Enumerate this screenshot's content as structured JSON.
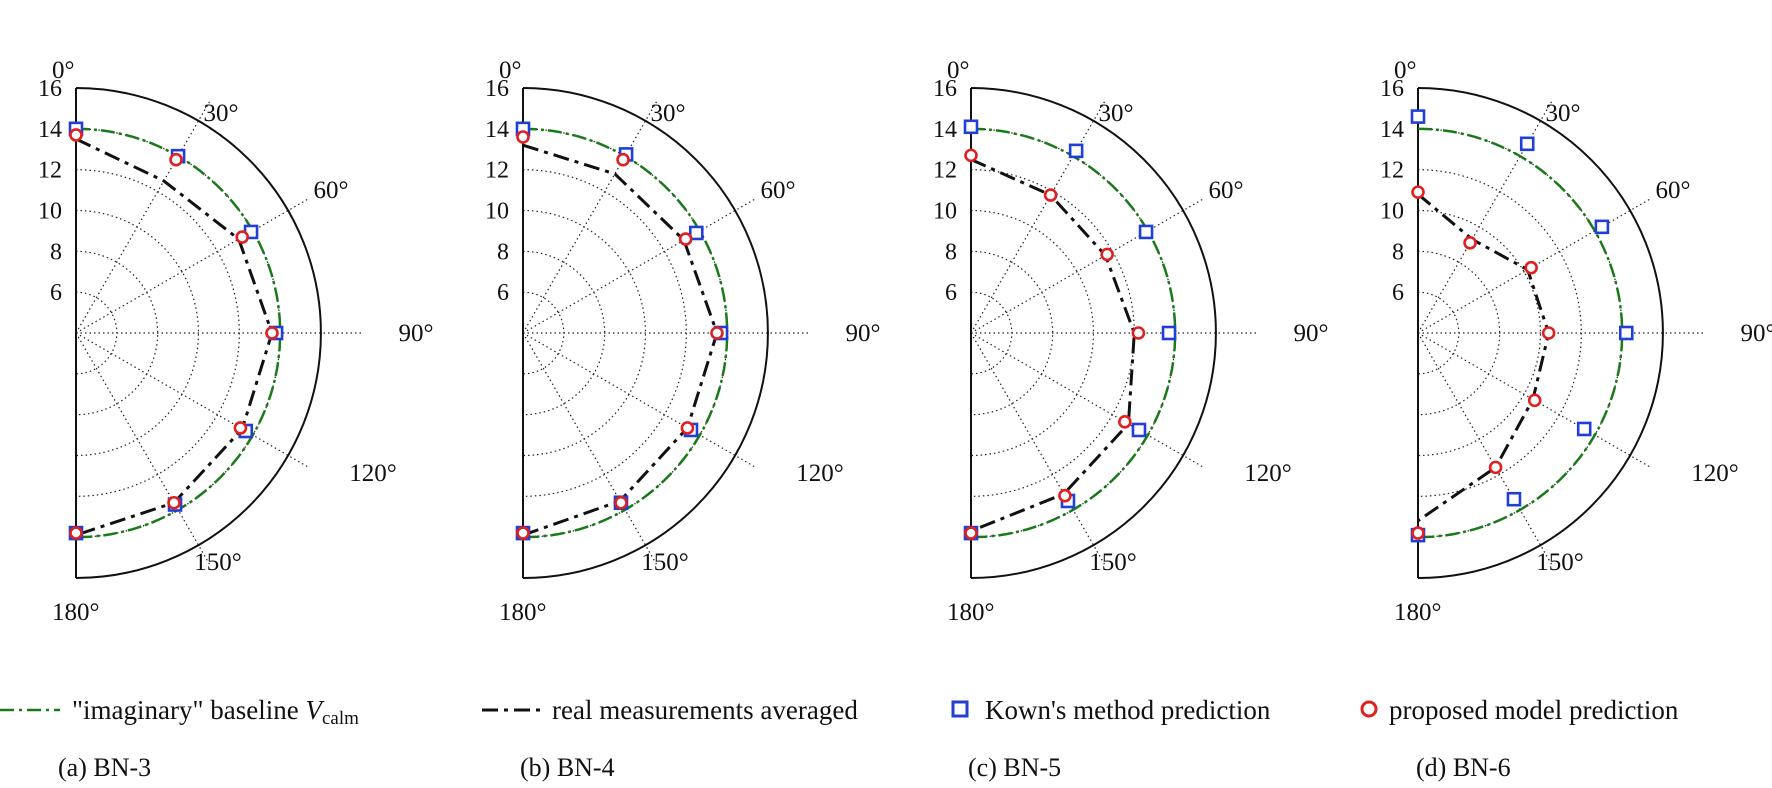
{
  "figure": {
    "legend": {
      "baseline": {
        "text": "\"imaginary\" baseline ",
        "var": "V",
        "sub": "calm",
        "color": "#1a7a1a"
      },
      "real": {
        "text": "real measurements averaged",
        "color": "#111111"
      },
      "kown": {
        "text": "Kown's method prediction",
        "color": "#1f3fd6"
      },
      "proposed": {
        "text": "proposed model prediction",
        "color": "#e01f1f"
      }
    }
  },
  "chart_data": [
    {
      "type": "polar-scatter-line",
      "label": "(a) BN-3",
      "angles_deg": [
        0,
        30,
        60,
        90,
        120,
        150,
        180
      ],
      "angle_labels": [
        "0°",
        "30°",
        "60°",
        "90°",
        "120°",
        "150°",
        "180°"
      ],
      "radial_ticks": [
        6,
        8,
        10,
        12,
        14,
        16
      ],
      "rlim": [
        4,
        16
      ],
      "baseline": [
        14,
        14,
        14,
        14,
        14,
        14,
        14
      ],
      "real_avg": [
        13.5,
        12.6,
        13.2,
        13.6,
        13.4,
        13.6,
        13.9
      ],
      "kown": [
        14.0,
        14.0,
        13.9,
        13.8,
        13.6,
        13.7,
        13.8
      ],
      "proposed": [
        13.7,
        13.8,
        13.4,
        13.6,
        13.3,
        13.6,
        13.8
      ]
    },
    {
      "type": "polar-scatter-line",
      "label": "(b) BN-4",
      "angles_deg": [
        0,
        30,
        60,
        90,
        120,
        150,
        180
      ],
      "angle_labels": [
        "0°",
        "30°",
        "60°",
        "90°",
        "120°",
        "150°",
        "180°"
      ],
      "radial_ticks": [
        6,
        8,
        10,
        12,
        14,
        16
      ],
      "rlim": [
        4,
        16
      ],
      "baseline": [
        14,
        14,
        14,
        14,
        14,
        14,
        14
      ],
      "real_avg": [
        13.2,
        13.0,
        13.1,
        13.5,
        13.3,
        13.5,
        13.9
      ],
      "kown": [
        14.0,
        14.1,
        13.8,
        13.7,
        13.5,
        13.6,
        13.8
      ],
      "proposed": [
        13.6,
        13.8,
        13.2,
        13.5,
        13.3,
        13.6,
        13.8
      ]
    },
    {
      "type": "polar-scatter-line",
      "label": "(c) BN-5",
      "angles_deg": [
        0,
        30,
        60,
        90,
        120,
        150,
        180
      ],
      "angle_labels": [
        "0°",
        "30°",
        "60°",
        "90°",
        "120°",
        "150°",
        "180°"
      ],
      "radial_ticks": [
        6,
        8,
        10,
        12,
        14,
        16
      ],
      "rlim": [
        4,
        16
      ],
      "baseline": [
        14,
        14,
        14,
        14,
        14,
        14,
        14
      ],
      "real_avg": [
        12.5,
        11.8,
        11.6,
        12.0,
        12.9,
        13.1,
        13.7
      ],
      "kown": [
        14.1,
        14.3,
        13.9,
        13.7,
        13.5,
        13.5,
        13.8
      ],
      "proposed": [
        12.7,
        11.8,
        11.7,
        12.2,
        12.7,
        13.2,
        13.8
      ]
    },
    {
      "type": "polar-scatter-line",
      "label": "(d) BN-6",
      "angles_deg": [
        0,
        30,
        60,
        90,
        120,
        150,
        180
      ],
      "angle_labels": [
        "0°",
        "30°",
        "60°",
        "90°",
        "120°",
        "150°",
        "180°"
      ],
      "radial_ticks": [
        6,
        8,
        10,
        12,
        14,
        16
      ],
      "rlim": [
        4,
        16
      ],
      "baseline": [
        14,
        14,
        14,
        14,
        14,
        14,
        14
      ],
      "real_avg": [
        10.8,
        9.3,
        10.2,
        10.4,
        10.5,
        11.6,
        13.2
      ],
      "kown": [
        14.6,
        14.7,
        14.4,
        14.2,
        13.4,
        13.4,
        13.9
      ],
      "proposed": [
        10.9,
        9.1,
        10.4,
        10.4,
        10.6,
        11.6,
        13.8
      ]
    }
  ]
}
